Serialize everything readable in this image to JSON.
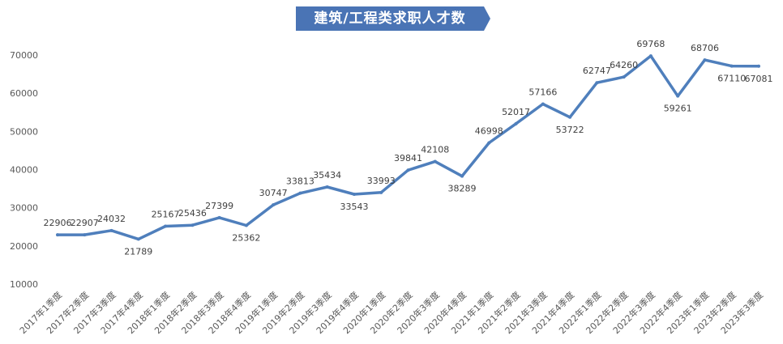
{
  "chart_data": {
    "type": "line",
    "title": "建筑/工程类求职人才数",
    "xlabel": "",
    "ylabel": "",
    "ylim": [
      10000,
      70000
    ],
    "yticks": [
      10000,
      20000,
      30000,
      40000,
      50000,
      60000,
      70000
    ],
    "grid": false,
    "legend": "none",
    "line_color": "#4f7fbc",
    "title_bg_color": "#4a74b5",
    "categories": [
      "2017年1季度",
      "2017年2季度",
      "2017年3季度",
      "2017年4季度",
      "2018年1季度",
      "2018年2季度",
      "2018年3季度",
      "2018年4季度",
      "2019年1季度",
      "2019年2季度",
      "2019年3季度",
      "2019年4季度",
      "2020年1季度",
      "2020年2季度",
      "2020年3季度",
      "2020年4季度",
      "2021年1季度",
      "2021年2季度",
      "2021年3季度",
      "2021年4季度",
      "2022年1季度",
      "2022年2季度",
      "2022年3季度",
      "2022年4季度",
      "2023年1季度",
      "2023年2季度",
      "2023年3季度"
    ],
    "series": [
      {
        "values": [
          22906,
          22907,
          24032,
          21789,
          25167,
          25436,
          27399,
          25362,
          30747,
          33813,
          35434,
          33543,
          33993,
          39841,
          42108,
          38289,
          46998,
          52017,
          57166,
          53722,
          62747,
          64260,
          69768,
          59261,
          68706,
          67110,
          67081
        ]
      }
    ]
  }
}
